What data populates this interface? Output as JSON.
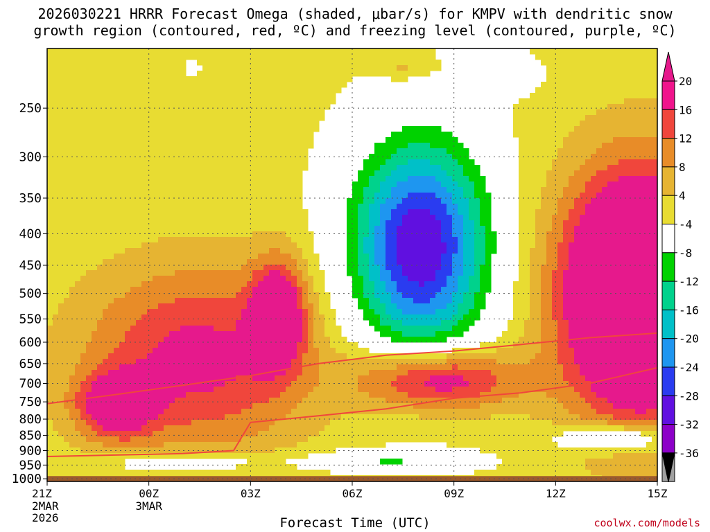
{
  "title": {
    "line1": "2026030221 HRRR Forecast Omega (shaded, μbar/s) for KMPV with dendritic snow",
    "line2": "growth region (contoured, red, ºC) and freezing level (contoured, purple, ºC)"
  },
  "credit": "coolwx.com/models",
  "chart_data": {
    "type": "heatmap",
    "title": "2026030221 HRRR Forecast Omega (shaded, μbar/s) for KMPV with dendritic snow growth region (contoured, red, ºC) and freezing level (contoured, purple, ºC)",
    "xlabel": "Forecast Time (UTC)",
    "ylabel": "",
    "x_ticks": [
      {
        "hour": 0,
        "label": "21Z",
        "sub": [
          "2MAR",
          "2026"
        ]
      },
      {
        "hour": 3,
        "label": "00Z",
        "sub": [
          "3MAR"
        ]
      },
      {
        "hour": 6,
        "label": "03Z",
        "sub": []
      },
      {
        "hour": 9,
        "label": "06Z",
        "sub": []
      },
      {
        "hour": 12,
        "label": "09Z",
        "sub": []
      },
      {
        "hour": 15,
        "label": "12Z",
        "sub": []
      },
      {
        "hour": 18,
        "label": "15Z",
        "sub": []
      }
    ],
    "xlim": [
      0,
      18
    ],
    "y_ticks": [
      250,
      300,
      350,
      400,
      450,
      500,
      550,
      600,
      650,
      700,
      750,
      800,
      850,
      900,
      950,
      1000
    ],
    "ylim": [
      1010,
      200
    ],
    "yscale": "log-pressure",
    "grid": true,
    "colorbar": {
      "labels": [
        "20",
        "16",
        "12",
        "8",
        "4",
        "-4",
        "-8",
        "-12",
        "-16",
        "-20",
        "-24",
        "-28",
        "-32",
        "-36"
      ],
      "levels": [
        -36,
        -32,
        -28,
        -24,
        -20,
        -16,
        -12,
        -8,
        -4,
        4,
        8,
        12,
        16,
        20
      ],
      "colors": [
        "#a0a0a0",
        "#8c00c8",
        "#6010e0",
        "#2a3cf0",
        "#1e96f0",
        "#00c0c8",
        "#00d28c",
        "#00d200",
        "#ffffff",
        "#e8dc32",
        "#e6b432",
        "#e88c28",
        "#f0463c",
        "#f0148c"
      ],
      "over_color": "#e6198c",
      "under_color": "#000000"
    },
    "surface_color": "#9c5a2c",
    "surface_pressure": 990,
    "omega_features": [
      {
        "name": "upper dry",
        "x": 13.5,
        "p": 220,
        "rx": 0.9,
        "ry": 0.07,
        "v": -8
      },
      {
        "name": "top-left green",
        "x": 4.3,
        "p": 215,
        "rx": 0.15,
        "ry": 0.02,
        "v": -7
      },
      {
        "name": "top yellow",
        "x": 10.5,
        "p": 215,
        "rx": 0.8,
        "ry": 0.04,
        "v": 5
      },
      {
        "name": "ascent core",
        "x": 11.5,
        "p": 690,
        "rx": 2.3,
        "ry": 0.12,
        "v": 22
      },
      {
        "name": "left core",
        "x": 4.4,
        "p": 640,
        "rx": 3.4,
        "ry": 0.35,
        "v": 17
      },
      {
        "name": "left blob",
        "x": 2.0,
        "p": 760,
        "rx": 1.1,
        "ry": 0.12,
        "v": 18
      },
      {
        "name": "mid blob",
        "x": 6.8,
        "p": 540,
        "rx": 0.8,
        "ry": 0.2,
        "v": 20
      },
      {
        "name": "descent",
        "x": 11.0,
        "p": 420,
        "rx": 2.0,
        "ry": 0.4,
        "v": -33
      },
      {
        "name": "right core",
        "x": 17.5,
        "p": 500,
        "rx": 2.3,
        "ry": 0.45,
        "v": 40
      },
      {
        "name": "low green",
        "x": 4.0,
        "p": 940,
        "rx": 2.4,
        "ry": 0.04,
        "v": -9
      },
      {
        "name": "low green 2",
        "x": 10.0,
        "p": 935,
        "rx": 2.4,
        "ry": 0.04,
        "v": -9
      },
      {
        "name": "right low",
        "x": 16.8,
        "p": 860,
        "rx": 1.6,
        "ry": 0.05,
        "v": -15
      }
    ],
    "dgz_lines": [
      {
        "name": "dgz upper",
        "points": [
          [
            0,
            755
          ],
          [
            2,
            730
          ],
          [
            4,
            705
          ],
          [
            6,
            680
          ],
          [
            8,
            650
          ],
          [
            10,
            630
          ],
          [
            12,
            620
          ],
          [
            14,
            605
          ],
          [
            16,
            590
          ],
          [
            18,
            580
          ]
        ]
      },
      {
        "name": "dgz lower",
        "points": [
          [
            0,
            920
          ],
          [
            2,
            915
          ],
          [
            4,
            910
          ],
          [
            5.5,
            900
          ],
          [
            6,
            810
          ],
          [
            8,
            790
          ],
          [
            10,
            770
          ],
          [
            12,
            740
          ],
          [
            14,
            725
          ],
          [
            16,
            700
          ],
          [
            18,
            660
          ]
        ]
      }
    ]
  }
}
